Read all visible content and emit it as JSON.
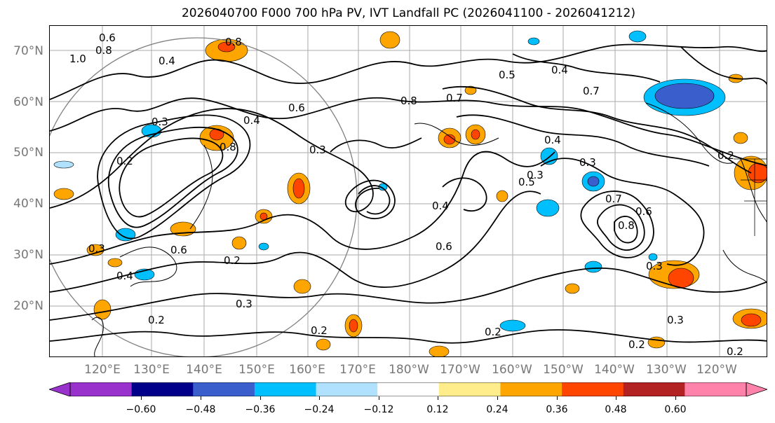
{
  "title": "2026040700 F000 700 hPa PV, IVT Landfall PC (2026041100 - 2026041212)",
  "lat_labels": [
    "70°N",
    "60°N",
    "50°N",
    "40°N",
    "30°N",
    "20°N"
  ],
  "lon_labels": [
    "120°E",
    "130°E",
    "140°E",
    "150°E",
    "160°E",
    "170°E",
    "180°W",
    "170°W",
    "160°W",
    "150°W",
    "140°W",
    "130°W",
    "120°W"
  ],
  "contour_labels": [
    "0.6",
    "0.8",
    "1.0",
    "0.4",
    "0.8",
    "0.3",
    "0.8",
    "0.6",
    "0.7",
    "0.5",
    "0.4",
    "0.8",
    "0.3",
    "0.2",
    "0.4",
    "0.6",
    "0.7",
    "0.5",
    "0.3",
    "0.2",
    "0.3",
    "0.4",
    "0.6",
    "0.2",
    "0.4",
    "0.3",
    "0.2",
    "0.2",
    "0.2",
    "0.3",
    "0.2",
    "0.3",
    "0.7",
    "0.6",
    "0.8",
    "0.4",
    "0.3",
    "0.2"
  ],
  "colorbar": {
    "ticks": [
      "−0.60",
      "−0.48",
      "−0.36",
      "−0.24",
      "−0.12",
      "0.12",
      "0.24",
      "0.36",
      "0.48",
      "0.60"
    ],
    "colors": [
      "#9932cc",
      "#00008b",
      "#3a5fcd",
      "#00bfff",
      "#b0e2ff",
      "#ffffff",
      "#ffec8b",
      "#ffa500",
      "#ff4500",
      "#b22222",
      "#ff82ab"
    ]
  }
}
